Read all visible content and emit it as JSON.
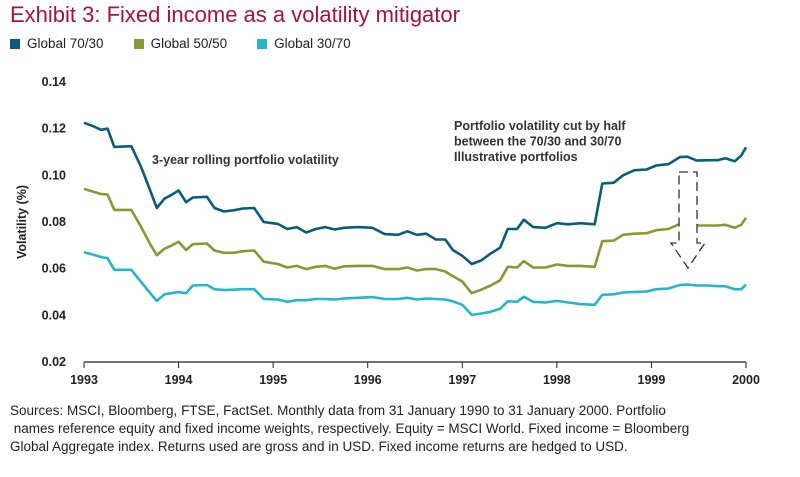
{
  "title": "Exhibit 3: Fixed income as a volatility mitigator",
  "colors": {
    "title": "#a8123e",
    "series_70_30": "#0a5d7a",
    "series_50_50": "#8c9634",
    "series_30_70": "#27b6c9",
    "axis": "#222222",
    "arrow": "#333333"
  },
  "footnote": [
    "Sources: MSCI, Bloomberg, FTSE, FactSet. Monthly data from 31 January 1990 to 31 January 2000. Portfolio",
    " names reference equity and fixed income weights, respectively. Equity = MSCI World. Fixed income = Bloomberg",
    "Global Aggregate index. Returns used are gross and in USD. Fixed income returns are hedged to USD."
  ],
  "chart_data": {
    "type": "line",
    "ylabel": "Volatility (%)",
    "xlabel": "",
    "ylim": [
      0.02,
      0.14
    ],
    "yticks": [
      "0.02",
      "0.04",
      "0.06",
      "0.08",
      "0.10",
      "0.12",
      "0.14"
    ],
    "xlim": [
      1993,
      2000
    ],
    "xticks": [
      "1993",
      "1994",
      "1995",
      "1996",
      "1997",
      "1998",
      "1999",
      "2000"
    ],
    "grid": false,
    "legend_position": "top-left",
    "annotations": [
      {
        "text": "3-year rolling portfolio volatility"
      },
      {
        "lines": [
          "Portfolio volatility cut by half",
          "between the 70/30 and 30/70",
          "Illustrative portfolios"
        ]
      }
    ],
    "series": [
      {
        "name": "Global 70/30",
        "points": [
          [
            1993.0,
            0.1225
          ],
          [
            1993.1,
            0.121
          ],
          [
            1993.18,
            0.1195
          ],
          [
            1993.25,
            0.12
          ],
          [
            1993.32,
            0.1122
          ],
          [
            1993.5,
            0.1125
          ],
          [
            1993.6,
            0.104
          ],
          [
            1993.7,
            0.0935
          ],
          [
            1993.77,
            0.086
          ],
          [
            1993.85,
            0.09
          ],
          [
            1993.92,
            0.0915
          ],
          [
            1994.0,
            0.0935
          ],
          [
            1994.08,
            0.0885
          ],
          [
            1994.15,
            0.0905
          ],
          [
            1994.3,
            0.0908
          ],
          [
            1994.38,
            0.086
          ],
          [
            1994.48,
            0.0845
          ],
          [
            1994.58,
            0.085
          ],
          [
            1994.68,
            0.0858
          ],
          [
            1994.8,
            0.086
          ],
          [
            1994.9,
            0.08
          ],
          [
            1995.05,
            0.0792
          ],
          [
            1995.15,
            0.077
          ],
          [
            1995.25,
            0.0778
          ],
          [
            1995.35,
            0.0755
          ],
          [
            1995.45,
            0.077
          ],
          [
            1995.55,
            0.0778
          ],
          [
            1995.65,
            0.0768
          ],
          [
            1995.75,
            0.0775
          ],
          [
            1995.9,
            0.0778
          ],
          [
            1996.05,
            0.0775
          ],
          [
            1996.18,
            0.0748
          ],
          [
            1996.32,
            0.0745
          ],
          [
            1996.42,
            0.076
          ],
          [
            1996.52,
            0.0745
          ],
          [
            1996.62,
            0.075
          ],
          [
            1996.72,
            0.0725
          ],
          [
            1996.82,
            0.0725
          ],
          [
            1996.9,
            0.068
          ],
          [
            1997.0,
            0.0655
          ],
          [
            1997.1,
            0.062
          ],
          [
            1997.2,
            0.0635
          ],
          [
            1997.3,
            0.0665
          ],
          [
            1997.4,
            0.069
          ],
          [
            1997.48,
            0.077
          ],
          [
            1997.58,
            0.077
          ],
          [
            1997.65,
            0.081
          ],
          [
            1997.75,
            0.0778
          ],
          [
            1997.88,
            0.0775
          ],
          [
            1998.0,
            0.0795
          ],
          [
            1998.12,
            0.079
          ],
          [
            1998.25,
            0.0795
          ],
          [
            1998.4,
            0.079
          ],
          [
            1998.48,
            0.0965
          ],
          [
            1998.6,
            0.0968
          ],
          [
            1998.7,
            0.1
          ],
          [
            1998.82,
            0.1022
          ],
          [
            1998.95,
            0.1025
          ],
          [
            1999.05,
            0.1042
          ],
          [
            1999.18,
            0.1048
          ],
          [
            1999.3,
            0.1078
          ],
          [
            1999.38,
            0.108
          ],
          [
            1999.48,
            0.1063
          ],
          [
            1999.6,
            0.1065
          ],
          [
            1999.7,
            0.1065
          ],
          [
            1999.78,
            0.1073
          ],
          [
            1999.88,
            0.106
          ],
          [
            1999.95,
            0.1085
          ],
          [
            2000.0,
            0.112
          ]
        ]
      },
      {
        "name": "Global 50/50",
        "points": [
          [
            1993.0,
            0.0942
          ],
          [
            1993.1,
            0.093
          ],
          [
            1993.18,
            0.092
          ],
          [
            1993.25,
            0.0918
          ],
          [
            1993.32,
            0.0852
          ],
          [
            1993.5,
            0.0852
          ],
          [
            1993.6,
            0.0782
          ],
          [
            1993.7,
            0.0705
          ],
          [
            1993.77,
            0.0658
          ],
          [
            1993.85,
            0.0685
          ],
          [
            1993.92,
            0.0698
          ],
          [
            1994.0,
            0.0715
          ],
          [
            1994.08,
            0.068
          ],
          [
            1994.15,
            0.0705
          ],
          [
            1994.3,
            0.0708
          ],
          [
            1994.38,
            0.0678
          ],
          [
            1994.48,
            0.0668
          ],
          [
            1994.58,
            0.0668
          ],
          [
            1994.68,
            0.0675
          ],
          [
            1994.8,
            0.0678
          ],
          [
            1994.9,
            0.063
          ],
          [
            1995.05,
            0.062
          ],
          [
            1995.15,
            0.0605
          ],
          [
            1995.25,
            0.0612
          ],
          [
            1995.35,
            0.0598
          ],
          [
            1995.45,
            0.0608
          ],
          [
            1995.55,
            0.0612
          ],
          [
            1995.65,
            0.06
          ],
          [
            1995.75,
            0.061
          ],
          [
            1995.9,
            0.0612
          ],
          [
            1996.05,
            0.0612
          ],
          [
            1996.18,
            0.0598
          ],
          [
            1996.32,
            0.0598
          ],
          [
            1996.42,
            0.0605
          ],
          [
            1996.52,
            0.0592
          ],
          [
            1996.62,
            0.0598
          ],
          [
            1996.72,
            0.0598
          ],
          [
            1996.82,
            0.0588
          ],
          [
            1996.9,
            0.0568
          ],
          [
            1997.0,
            0.0545
          ],
          [
            1997.1,
            0.0495
          ],
          [
            1997.2,
            0.051
          ],
          [
            1997.3,
            0.0528
          ],
          [
            1997.4,
            0.055
          ],
          [
            1997.48,
            0.0608
          ],
          [
            1997.58,
            0.0605
          ],
          [
            1997.65,
            0.0632
          ],
          [
            1997.75,
            0.0605
          ],
          [
            1997.88,
            0.0605
          ],
          [
            1998.0,
            0.0618
          ],
          [
            1998.12,
            0.0612
          ],
          [
            1998.25,
            0.0612
          ],
          [
            1998.4,
            0.0608
          ],
          [
            1998.48,
            0.0718
          ],
          [
            1998.6,
            0.072
          ],
          [
            1998.7,
            0.0745
          ],
          [
            1998.82,
            0.075
          ],
          [
            1998.95,
            0.0752
          ],
          [
            1999.05,
            0.0765
          ],
          [
            1999.18,
            0.077
          ],
          [
            1999.3,
            0.0792
          ],
          [
            1999.38,
            0.0795
          ],
          [
            1999.48,
            0.0785
          ],
          [
            1999.6,
            0.0785
          ],
          [
            1999.7,
            0.0785
          ],
          [
            1999.78,
            0.0788
          ],
          [
            1999.88,
            0.0775
          ],
          [
            1999.95,
            0.0788
          ],
          [
            2000.0,
            0.0818
          ]
        ]
      },
      {
        "name": "Global 30/70",
        "points": [
          [
            1993.0,
            0.067
          ],
          [
            1993.1,
            0.066
          ],
          [
            1993.18,
            0.065
          ],
          [
            1993.25,
            0.0645
          ],
          [
            1993.32,
            0.0595
          ],
          [
            1993.5,
            0.0595
          ],
          [
            1993.6,
            0.0545
          ],
          [
            1993.7,
            0.0495
          ],
          [
            1993.77,
            0.0462
          ],
          [
            1993.85,
            0.049
          ],
          [
            1993.92,
            0.0495
          ],
          [
            1994.0,
            0.05
          ],
          [
            1994.08,
            0.0495
          ],
          [
            1994.15,
            0.0528
          ],
          [
            1994.3,
            0.053
          ],
          [
            1994.38,
            0.0512
          ],
          [
            1994.48,
            0.0508
          ],
          [
            1994.58,
            0.051
          ],
          [
            1994.68,
            0.0512
          ],
          [
            1994.8,
            0.0512
          ],
          [
            1994.9,
            0.047
          ],
          [
            1995.05,
            0.0468
          ],
          [
            1995.15,
            0.0458
          ],
          [
            1995.25,
            0.0465
          ],
          [
            1995.35,
            0.0465
          ],
          [
            1995.45,
            0.047
          ],
          [
            1995.55,
            0.047
          ],
          [
            1995.65,
            0.0468
          ],
          [
            1995.75,
            0.0472
          ],
          [
            1995.9,
            0.0475
          ],
          [
            1996.05,
            0.0478
          ],
          [
            1996.18,
            0.047
          ],
          [
            1996.32,
            0.047
          ],
          [
            1996.42,
            0.0475
          ],
          [
            1996.52,
            0.0468
          ],
          [
            1996.62,
            0.0472
          ],
          [
            1996.72,
            0.047
          ],
          [
            1996.82,
            0.0468
          ],
          [
            1996.9,
            0.046
          ],
          [
            1997.0,
            0.0445
          ],
          [
            1997.1,
            0.0402
          ],
          [
            1997.2,
            0.0408
          ],
          [
            1997.3,
            0.0415
          ],
          [
            1997.4,
            0.0428
          ],
          [
            1997.48,
            0.046
          ],
          [
            1997.58,
            0.0458
          ],
          [
            1997.65,
            0.048
          ],
          [
            1997.75,
            0.0458
          ],
          [
            1997.88,
            0.0455
          ],
          [
            1998.0,
            0.0462
          ],
          [
            1998.12,
            0.0455
          ],
          [
            1998.25,
            0.0448
          ],
          [
            1998.4,
            0.0445
          ],
          [
            1998.48,
            0.0488
          ],
          [
            1998.6,
            0.049
          ],
          [
            1998.7,
            0.0498
          ],
          [
            1998.82,
            0.05
          ],
          [
            1998.95,
            0.0502
          ],
          [
            1999.05,
            0.0512
          ],
          [
            1999.18,
            0.0515
          ],
          [
            1999.3,
            0.053
          ],
          [
            1999.38,
            0.0532
          ],
          [
            1999.48,
            0.0528
          ],
          [
            1999.6,
            0.0528
          ],
          [
            1999.7,
            0.0525
          ],
          [
            1999.78,
            0.0525
          ],
          [
            1999.88,
            0.0512
          ],
          [
            1999.95,
            0.0512
          ],
          [
            2000.0,
            0.0532
          ]
        ]
      }
    ]
  }
}
